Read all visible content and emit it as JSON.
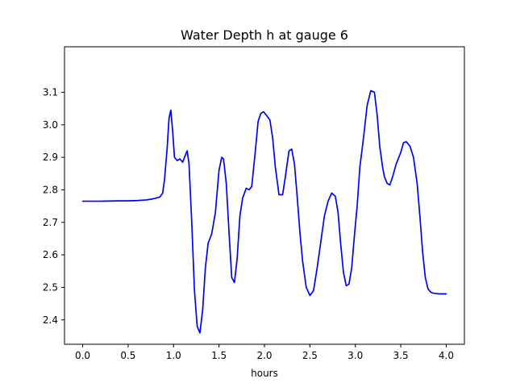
{
  "chart_data": {
    "type": "line",
    "title": "Water Depth h at gauge 6",
    "xlabel": "hours",
    "ylabel": "",
    "xlim": [
      -0.2,
      4.2
    ],
    "ylim": [
      2.325,
      3.24
    ],
    "xticks": [
      0.0,
      0.5,
      1.0,
      1.5,
      2.0,
      2.5,
      3.0,
      3.5,
      4.0
    ],
    "xtick_labels": [
      "0.0",
      "0.5",
      "1.0",
      "1.5",
      "2.0",
      "2.5",
      "3.0",
      "3.5",
      "4.0"
    ],
    "yticks": [
      2.4,
      2.5,
      2.6,
      2.7,
      2.8,
      2.9,
      3.0,
      3.1
    ],
    "ytick_labels": [
      "2.4",
      "2.5",
      "2.6",
      "2.7",
      "2.8",
      "2.9",
      "3.0",
      "3.1"
    ],
    "grid": false,
    "series": [
      {
        "color": "#0000ff",
        "x": [
          0.0,
          0.2,
          0.4,
          0.5,
          0.6,
          0.7,
          0.75,
          0.8,
          0.85,
          0.88,
          0.9,
          0.93,
          0.95,
          0.97,
          0.99,
          1.01,
          1.04,
          1.07,
          1.1,
          1.12,
          1.15,
          1.17,
          1.2,
          1.23,
          1.26,
          1.29,
          1.32,
          1.35,
          1.38,
          1.42,
          1.46,
          1.5,
          1.53,
          1.55,
          1.58,
          1.61,
          1.64,
          1.67,
          1.7,
          1.73,
          1.76,
          1.8,
          1.83,
          1.86,
          1.9,
          1.93,
          1.96,
          1.99,
          2.02,
          2.06,
          2.09,
          2.12,
          2.16,
          2.2,
          2.23,
          2.27,
          2.3,
          2.33,
          2.36,
          2.39,
          2.42,
          2.46,
          2.5,
          2.54,
          2.58,
          2.62,
          2.66,
          2.7,
          2.74,
          2.78,
          2.81,
          2.84,
          2.87,
          2.9,
          2.93,
          2.96,
          2.99,
          3.02,
          3.05,
          3.09,
          3.13,
          3.17,
          3.21,
          3.24,
          3.27,
          3.3,
          3.32,
          3.35,
          3.38,
          3.41,
          3.45,
          3.5,
          3.53,
          3.56,
          3.6,
          3.64,
          3.68,
          3.71,
          3.74,
          3.77,
          3.8,
          3.83,
          3.86,
          3.89,
          3.92,
          3.95,
          3.98,
          4.0
        ],
        "y": [
          2.765,
          2.765,
          2.766,
          2.766,
          2.767,
          2.769,
          2.771,
          2.774,
          2.778,
          2.79,
          2.83,
          2.93,
          3.02,
          3.045,
          2.98,
          2.9,
          2.89,
          2.895,
          2.885,
          2.9,
          2.92,
          2.88,
          2.7,
          2.49,
          2.38,
          2.36,
          2.43,
          2.56,
          2.635,
          2.665,
          2.73,
          2.86,
          2.9,
          2.895,
          2.82,
          2.67,
          2.53,
          2.515,
          2.59,
          2.72,
          2.775,
          2.805,
          2.8,
          2.81,
          2.92,
          3.01,
          3.035,
          3.04,
          3.03,
          3.015,
          2.96,
          2.87,
          2.785,
          2.785,
          2.84,
          2.92,
          2.925,
          2.88,
          2.78,
          2.67,
          2.58,
          2.5,
          2.475,
          2.49,
          2.56,
          2.64,
          2.72,
          2.765,
          2.79,
          2.78,
          2.73,
          2.63,
          2.545,
          2.505,
          2.51,
          2.56,
          2.66,
          2.75,
          2.87,
          2.96,
          3.06,
          3.105,
          3.1,
          3.03,
          2.93,
          2.87,
          2.84,
          2.82,
          2.815,
          2.84,
          2.88,
          2.915,
          2.945,
          2.948,
          2.935,
          2.9,
          2.82,
          2.72,
          2.61,
          2.53,
          2.495,
          2.485,
          2.482,
          2.481,
          2.48,
          2.48,
          2.48,
          2.48
        ]
      }
    ]
  }
}
